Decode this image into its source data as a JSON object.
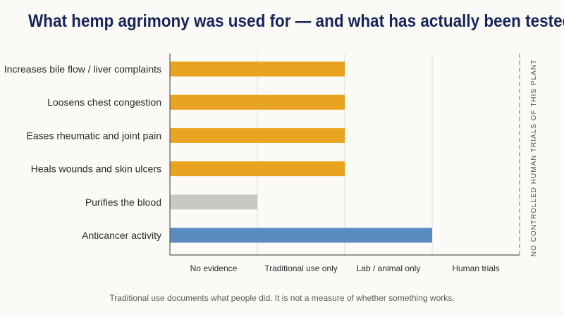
{
  "chart_data": {
    "type": "bar",
    "orientation": "horizontal",
    "title": "What hemp agrimony was used for — and what has actually been tested",
    "categories": [
      "Increases bile flow / liver complaints",
      "Loosens chest congestion",
      "Eases rheumatic and joint pain",
      "Heals wounds and skin ulcers",
      "Purifies the blood",
      "Anticancer activity"
    ],
    "values": [
      2,
      2,
      2,
      2,
      1,
      3
    ],
    "bar_colors": [
      "#e8a420",
      "#e8a420",
      "#e8a420",
      "#e8a420",
      "#c8c8c4",
      "#5b8cc0"
    ],
    "x_ticks": [
      "No evidence",
      "Traditional use only",
      "Lab / animal only",
      "Human trials"
    ],
    "xlim": [
      0,
      4
    ],
    "grid": true,
    "side_note": "NO CONTROLLED HUMAN TRIALS OF THIS PLANT",
    "footnote": "Traditional use documents what people did. It is not a measure of whether something works."
  }
}
